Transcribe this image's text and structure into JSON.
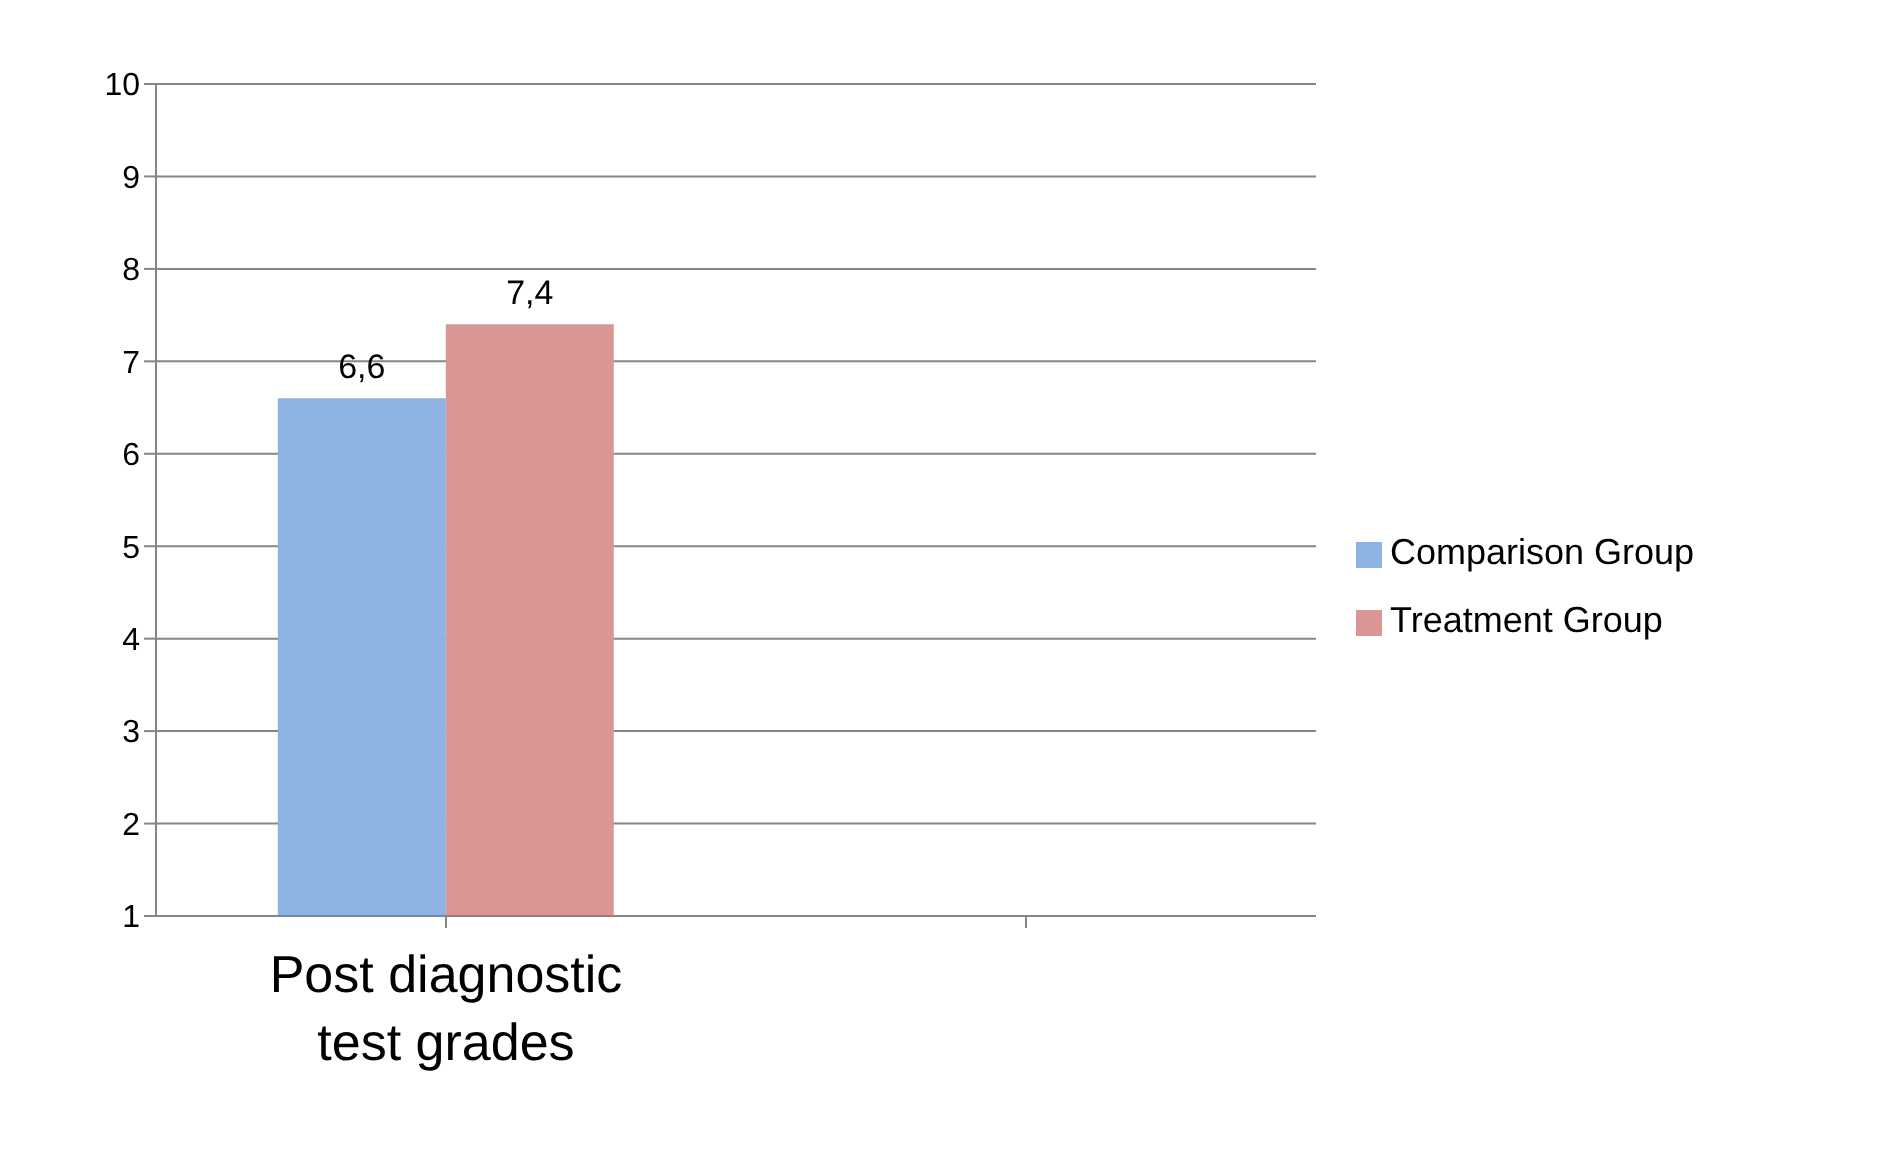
{
  "chart_data": {
    "type": "bar",
    "categories": [
      "Post diagnostic test grades",
      null
    ],
    "series": [
      {
        "name": "Comparison Group",
        "color": "#8db3e2",
        "values": [
          6.6,
          null
        ],
        "value_labels": [
          "6,6",
          null
        ]
      },
      {
        "name": "Treatment Group",
        "color": "#d99694",
        "values": [
          7.4,
          null
        ],
        "value_labels": [
          "7,4",
          null
        ]
      }
    ],
    "ylim": [
      1,
      10
    ],
    "yticks": [
      1,
      2,
      3,
      4,
      5,
      6,
      7,
      8,
      9,
      10
    ],
    "grid": "y",
    "legend": "right"
  }
}
